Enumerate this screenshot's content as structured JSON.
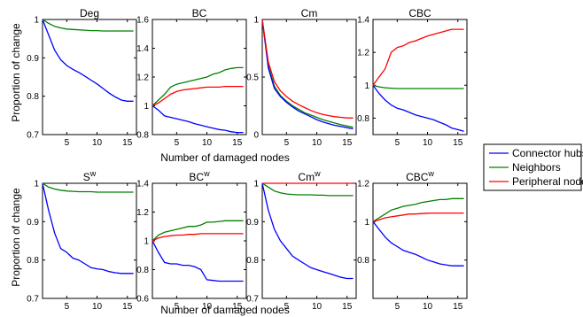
{
  "figure": {
    "ylabel": "Proportion of change",
    "xlabel": "Number of damaged nodes"
  },
  "chart_data": [
    {
      "type": "line",
      "title": "Deg",
      "title_sup": "",
      "xlim": [
        1,
        16.5
      ],
      "ylim": [
        0.7,
        1
      ],
      "yticks": [
        0.7,
        0.8,
        0.9,
        1
      ],
      "ytick_labels": [
        "0.7",
        "0.8",
        "0.9",
        "1"
      ],
      "xticks": [
        5,
        10,
        15
      ],
      "x": [
        1,
        2,
        3,
        4,
        5,
        6,
        7,
        8,
        9,
        10,
        11,
        12,
        13,
        14,
        15,
        16
      ],
      "series": [
        {
          "name": "Connector hubs",
          "color": "#0000ff",
          "values": [
            1,
            0.96,
            0.92,
            0.895,
            0.88,
            0.87,
            0.862,
            0.852,
            0.842,
            0.832,
            0.82,
            0.808,
            0.798,
            0.79,
            0.787,
            0.787
          ]
        },
        {
          "name": "Neighbors",
          "color": "#008000",
          "values": [
            1,
            0.99,
            0.982,
            0.978,
            0.975,
            0.974,
            0.973,
            0.972,
            0.971,
            0.971,
            0.97,
            0.97,
            0.97,
            0.97,
            0.97,
            0.97
          ]
        }
      ]
    },
    {
      "type": "line",
      "title": "BC",
      "title_sup": "",
      "xlim": [
        1,
        16.5
      ],
      "ylim": [
        0.8,
        1.6
      ],
      "yticks": [
        0.8,
        1,
        1.2,
        1.4,
        1.6
      ],
      "ytick_labels": [
        "0.8",
        "1",
        "1.2",
        "1.4",
        "1.6"
      ],
      "xticks": [
        5,
        10,
        15
      ],
      "x": [
        1,
        2,
        3,
        4,
        5,
        6,
        7,
        8,
        9,
        10,
        11,
        12,
        13,
        14,
        15,
        16
      ],
      "series": [
        {
          "name": "Connector hubs",
          "color": "#0000ff",
          "values": [
            1,
            0.97,
            0.93,
            0.92,
            0.91,
            0.9,
            0.89,
            0.875,
            0.865,
            0.855,
            0.845,
            0.835,
            0.83,
            0.82,
            0.815,
            0.815
          ]
        },
        {
          "name": "Neighbors",
          "color": "#008000",
          "values": [
            1,
            1.04,
            1.08,
            1.13,
            1.15,
            1.16,
            1.17,
            1.18,
            1.19,
            1.2,
            1.22,
            1.23,
            1.25,
            1.26,
            1.265,
            1.265
          ]
        },
        {
          "name": "Peripheral nodes",
          "color": "#ff0000",
          "values": [
            1,
            1.02,
            1.05,
            1.08,
            1.1,
            1.11,
            1.115,
            1.12,
            1.125,
            1.13,
            1.13,
            1.13,
            1.135,
            1.135,
            1.135,
            1.135
          ]
        }
      ]
    },
    {
      "type": "line",
      "title": "Cm",
      "title_sup": "",
      "xlim": [
        1,
        16.5
      ],
      "ylim": [
        0,
        1
      ],
      "yticks": [
        0,
        0.5,
        1
      ],
      "ytick_labels": [
        "0",
        "0.5",
        "1"
      ],
      "xticks": [
        5,
        10,
        15
      ],
      "x": [
        1,
        2,
        3,
        4,
        5,
        6,
        7,
        8,
        9,
        10,
        11,
        12,
        13,
        14,
        15,
        16
      ],
      "series": [
        {
          "name": "Neighbors",
          "color": "#008000",
          "values": [
            1,
            0.6,
            0.42,
            0.34,
            0.29,
            0.25,
            0.22,
            0.19,
            0.17,
            0.15,
            0.13,
            0.115,
            0.1,
            0.085,
            0.075,
            0.065
          ]
        },
        {
          "name": "Connector hubs",
          "color": "#0000ff",
          "values": [
            1,
            0.58,
            0.4,
            0.33,
            0.28,
            0.24,
            0.205,
            0.18,
            0.155,
            0.13,
            0.11,
            0.095,
            0.08,
            0.07,
            0.06,
            0.05
          ]
        },
        {
          "name": "Peripheral nodes",
          "color": "#ff0000",
          "values": [
            1,
            0.63,
            0.46,
            0.38,
            0.33,
            0.29,
            0.26,
            0.235,
            0.21,
            0.19,
            0.175,
            0.165,
            0.155,
            0.15,
            0.145,
            0.145
          ]
        }
      ]
    },
    {
      "type": "line",
      "title": "CBC",
      "title_sup": "",
      "xlim": [
        1,
        16.5
      ],
      "ylim": [
        0.7,
        1.4
      ],
      "yticks": [
        0.8,
        1,
        1.2,
        1.4
      ],
      "ytick_labels": [
        "0.8",
        "1",
        "1.2",
        "1.4"
      ],
      "xticks": [
        5,
        10,
        15
      ],
      "x": [
        1,
        2,
        3,
        4,
        5,
        6,
        7,
        8,
        9,
        10,
        11,
        12,
        13,
        14,
        15,
        16
      ],
      "series": [
        {
          "name": "Connector hubs",
          "color": "#0000ff",
          "values": [
            1,
            0.95,
            0.91,
            0.88,
            0.86,
            0.85,
            0.835,
            0.82,
            0.81,
            0.8,
            0.79,
            0.775,
            0.76,
            0.74,
            0.73,
            0.72
          ]
        },
        {
          "name": "Neighbors",
          "color": "#008000",
          "values": [
            1,
            0.99,
            0.985,
            0.982,
            0.98,
            0.98,
            0.98,
            0.98,
            0.98,
            0.98,
            0.98,
            0.98,
            0.98,
            0.98,
            0.98,
            0.98
          ]
        },
        {
          "name": "Peripheral nodes",
          "color": "#ff0000",
          "values": [
            1,
            1.05,
            1.1,
            1.2,
            1.23,
            1.24,
            1.26,
            1.27,
            1.285,
            1.3,
            1.31,
            1.32,
            1.33,
            1.34,
            1.34,
            1.34
          ]
        }
      ]
    },
    {
      "type": "line",
      "title": "S",
      "title_sup": "w",
      "xlim": [
        1,
        16.5
      ],
      "ylim": [
        0.7,
        1
      ],
      "yticks": [
        0.7,
        0.8,
        0.9,
        1
      ],
      "ytick_labels": [
        "0.7",
        "0.8",
        "0.9",
        "1"
      ],
      "xticks": [
        5,
        10,
        15
      ],
      "x": [
        1,
        2,
        3,
        4,
        5,
        6,
        7,
        8,
        9,
        10,
        11,
        12,
        13,
        14,
        15,
        16
      ],
      "series": [
        {
          "name": "Connector hubs",
          "color": "#0000ff",
          "values": [
            1,
            0.93,
            0.87,
            0.83,
            0.82,
            0.805,
            0.8,
            0.79,
            0.78,
            0.777,
            0.775,
            0.77,
            0.767,
            0.765,
            0.765,
            0.765
          ]
        },
        {
          "name": "Neighbors",
          "color": "#008000",
          "values": [
            1,
            0.99,
            0.985,
            0.982,
            0.98,
            0.979,
            0.978,
            0.978,
            0.978,
            0.977,
            0.977,
            0.977,
            0.977,
            0.977,
            0.977,
            0.977
          ]
        }
      ]
    },
    {
      "type": "line",
      "title": "BC",
      "title_sup": "w",
      "xlim": [
        1,
        16.5
      ],
      "ylim": [
        0.6,
        1.4
      ],
      "yticks": [
        0.6,
        0.8,
        1,
        1.2,
        1.4
      ],
      "ytick_labels": [
        "0.6",
        "0.8",
        "1",
        "1.2",
        "1.4"
      ],
      "xticks": [
        5,
        10,
        15
      ],
      "x": [
        1,
        2,
        3,
        4,
        5,
        6,
        7,
        8,
        9,
        10,
        11,
        12,
        13,
        14,
        15,
        16
      ],
      "series": [
        {
          "name": "Connector hubs",
          "color": "#0000ff",
          "values": [
            1,
            0.92,
            0.85,
            0.84,
            0.84,
            0.83,
            0.83,
            0.82,
            0.8,
            0.73,
            0.725,
            0.72,
            0.72,
            0.72,
            0.72,
            0.72
          ]
        },
        {
          "name": "Neighbors",
          "color": "#008000",
          "values": [
            1,
            1.04,
            1.06,
            1.07,
            1.08,
            1.09,
            1.1,
            1.1,
            1.11,
            1.13,
            1.13,
            1.135,
            1.14,
            1.14,
            1.14,
            1.14
          ]
        },
        {
          "name": "Peripheral nodes",
          "color": "#ff0000",
          "values": [
            1,
            1.02,
            1.03,
            1.035,
            1.04,
            1.04,
            1.045,
            1.045,
            1.05,
            1.05,
            1.05,
            1.05,
            1.05,
            1.05,
            1.05,
            1.05
          ]
        }
      ]
    },
    {
      "type": "line",
      "title": "Cm",
      "title_sup": "w",
      "xlim": [
        1,
        16.5
      ],
      "ylim": [
        0.7,
        1
      ],
      "yticks": [
        0.7,
        0.8,
        0.9,
        1
      ],
      "ytick_labels": [
        "0.7",
        "0.8",
        "0.9",
        "1"
      ],
      "xticks": [
        5,
        10,
        15
      ],
      "x": [
        1,
        2,
        3,
        4,
        5,
        6,
        7,
        8,
        9,
        10,
        11,
        12,
        13,
        14,
        15,
        16
      ],
      "series": [
        {
          "name": "Connector hubs",
          "color": "#0000ff",
          "values": [
            1,
            0.93,
            0.88,
            0.85,
            0.83,
            0.81,
            0.8,
            0.79,
            0.78,
            0.775,
            0.77,
            0.765,
            0.76,
            0.755,
            0.752,
            0.752
          ]
        },
        {
          "name": "Neighbors",
          "color": "#008000",
          "values": [
            1,
            0.99,
            0.98,
            0.975,
            0.972,
            0.971,
            0.97,
            0.97,
            0.97,
            0.969,
            0.969,
            0.968,
            0.968,
            0.968,
            0.968,
            0.968
          ]
        },
        {
          "name": "Peripheral nodes",
          "color": "#ff0000",
          "values": [
            1,
            1,
            1,
            1,
            1,
            1,
            1,
            1,
            1,
            1,
            1,
            1,
            1,
            1,
            1,
            1
          ]
        }
      ]
    },
    {
      "type": "line",
      "title": "CBC",
      "title_sup": "w",
      "xlim": [
        1,
        16.5
      ],
      "ylim": [
        0.6,
        1.2
      ],
      "yticks": [
        0.8,
        1,
        1.2
      ],
      "ytick_labels": [
        "0.8",
        "1",
        "1.2"
      ],
      "xticks": [
        5,
        10,
        15
      ],
      "x": [
        1,
        2,
        3,
        4,
        5,
        6,
        7,
        8,
        9,
        10,
        11,
        12,
        13,
        14,
        15,
        16
      ],
      "series": [
        {
          "name": "Connector hubs",
          "color": "#0000ff",
          "values": [
            1,
            0.96,
            0.92,
            0.89,
            0.87,
            0.85,
            0.84,
            0.83,
            0.815,
            0.8,
            0.79,
            0.78,
            0.775,
            0.77,
            0.77,
            0.77
          ]
        },
        {
          "name": "Neighbors",
          "color": "#008000",
          "values": [
            1,
            1.02,
            1.04,
            1.06,
            1.07,
            1.08,
            1.085,
            1.09,
            1.1,
            1.105,
            1.11,
            1.115,
            1.115,
            1.12,
            1.12,
            1.12
          ]
        },
        {
          "name": "Peripheral nodes",
          "color": "#ff0000",
          "values": [
            1,
            1.01,
            1.02,
            1.025,
            1.03,
            1.035,
            1.04,
            1.04,
            1.042,
            1.044,
            1.045,
            1.045,
            1.045,
            1.045,
            1.045,
            1.045
          ]
        }
      ]
    }
  ],
  "legend": {
    "entries": [
      {
        "label": "Connector hubs",
        "color": "#0000ff"
      },
      {
        "label": "Neighbors",
        "color": "#008000"
      },
      {
        "label": "Peripheral nodes",
        "color": "#ff0000"
      }
    ]
  }
}
